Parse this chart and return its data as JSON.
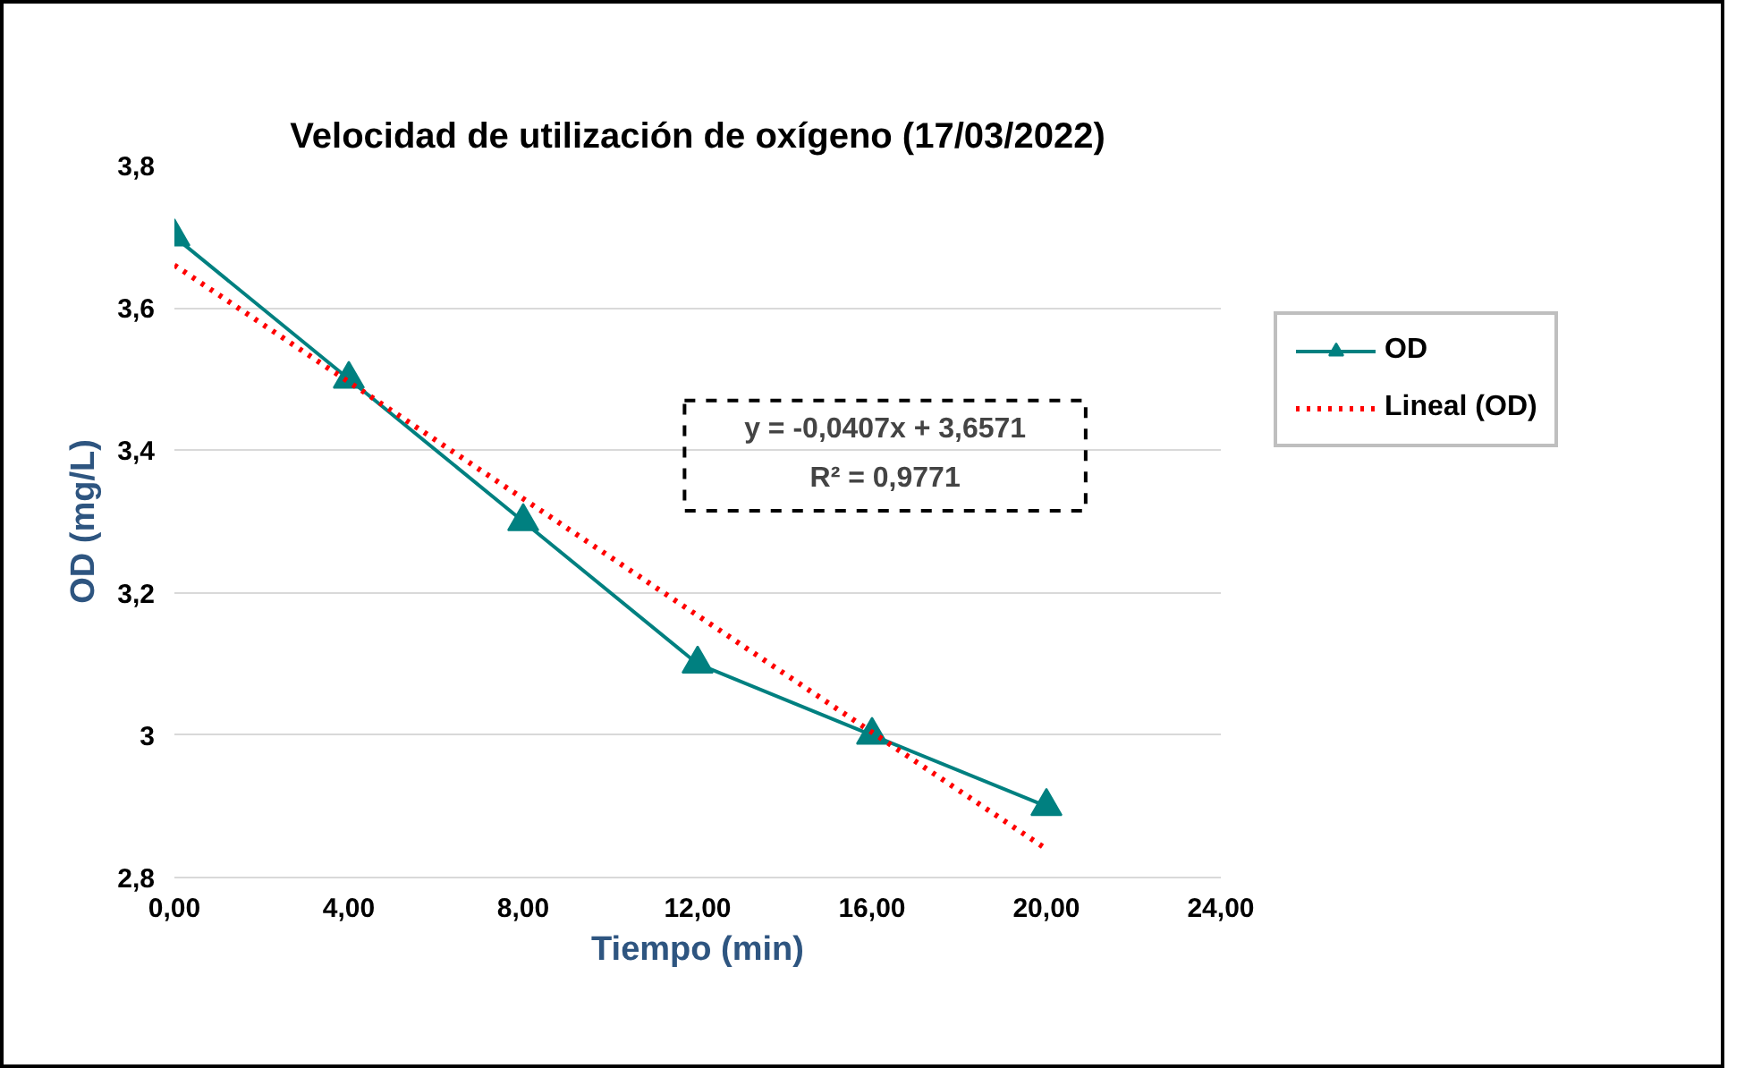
{
  "chart_data": {
    "type": "line",
    "title": "Velocidad de utilización de oxígeno (17/03/2022)",
    "xlabel": "Tiempo (min)",
    "ylabel": "OD (mg/L)",
    "x": [
      0,
      4,
      8,
      12,
      16,
      20
    ],
    "series": [
      {
        "name": "OD",
        "color": "#008080",
        "values": [
          3.7,
          3.5,
          3.3,
          3.1,
          3.0,
          2.9
        ],
        "marker": "triangle",
        "line_style": "solid"
      },
      {
        "name": "Lineal (OD)",
        "color": "#ff0000",
        "type": "line",
        "x": [
          0,
          20
        ],
        "values": [
          3.66,
          2.84
        ],
        "marker": "none",
        "line_style": "dotted"
      }
    ],
    "xlim": [
      0,
      24
    ],
    "xticks": [
      {
        "value": 0,
        "label": "0,00"
      },
      {
        "value": 4,
        "label": "4,00"
      },
      {
        "value": 8,
        "label": "8,00"
      },
      {
        "value": 12,
        "label": "12,00"
      },
      {
        "value": 16,
        "label": "16,00"
      },
      {
        "value": 20,
        "label": "20,00"
      },
      {
        "value": 24,
        "label": "24,00"
      }
    ],
    "ylim": [
      2.8,
      3.8
    ],
    "yticks": [
      {
        "value": 2.8,
        "label": "2,8"
      },
      3,
      {
        "value": 3.2,
        "label": "3,2"
      },
      {
        "value": 3.4,
        "label": "3,4"
      },
      {
        "value": 3.6,
        "label": "3,6"
      },
      {
        "value": 3.8,
        "label": "3,8"
      }
    ],
    "grid": "y",
    "legend": "right",
    "annotations": [
      "y = -0,0407x + 3,6571",
      "R² = 0,9771"
    ]
  }
}
